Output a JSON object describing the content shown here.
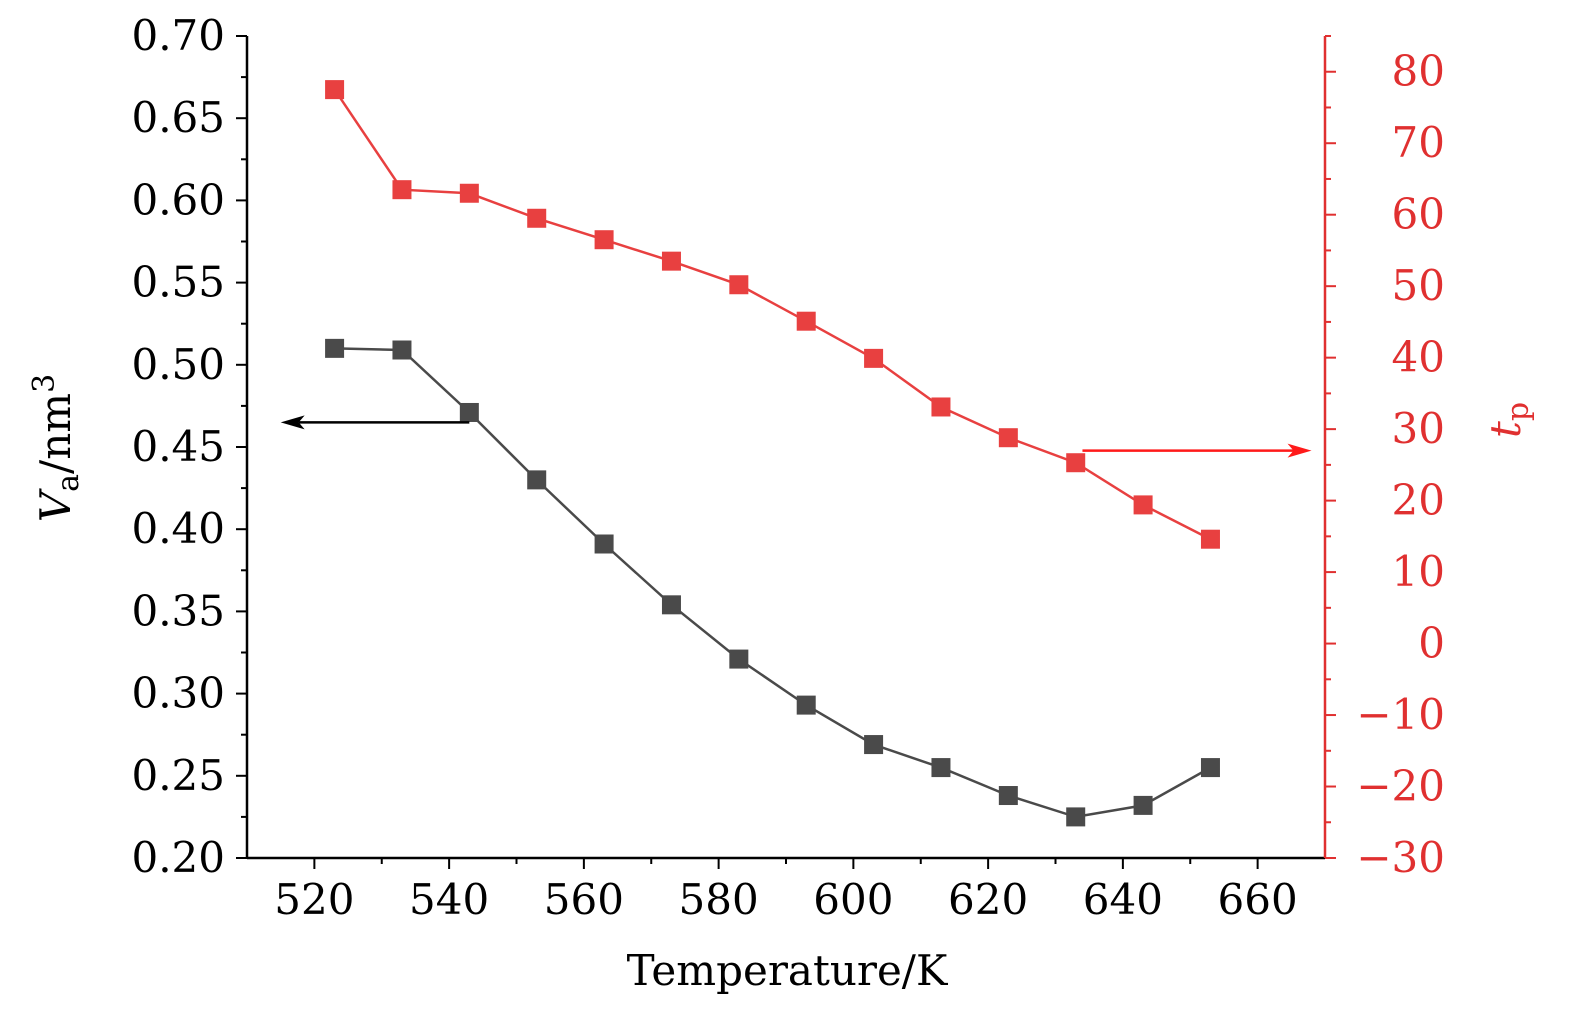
{
  "chart_data": {
    "type": "line",
    "x": [
      523,
      533,
      543,
      553,
      563,
      573,
      583,
      593,
      603,
      613,
      623,
      633,
      643,
      653
    ],
    "xlabel": "Temperature/K",
    "xlim": [
      510,
      670
    ],
    "xticks": [
      "520",
      "540",
      "560",
      "580",
      "600",
      "620",
      "640",
      "660"
    ],
    "ylim_left": [
      0.2,
      0.7
    ],
    "ylim_right": [
      -30,
      85
    ],
    "yticks_left": [
      "0.20",
      "0.25",
      "0.30",
      "0.35",
      "0.40",
      "0.45",
      "0.50",
      "0.55",
      "0.60",
      "0.65",
      "0.70"
    ],
    "yticks_right": [
      "−30",
      "−20",
      "−10",
      "0",
      "10",
      "20",
      "30",
      "40",
      "50",
      "60",
      "70",
      "80"
    ],
    "ylabel_left": {
      "main": "V",
      "sub": "a",
      "unit": "/nm",
      "sup": "3"
    },
    "ylabel_right": {
      "main": "t",
      "sub": "p"
    },
    "grid": false,
    "series": [
      {
        "name": "Va",
        "axis": "left",
        "color": "#4a4a4a",
        "marker": "square",
        "values": [
          0.51,
          0.509,
          0.471,
          0.43,
          0.391,
          0.354,
          0.321,
          0.293,
          0.269,
          0.255,
          0.238,
          0.225,
          0.232,
          0.255
        ]
      },
      {
        "name": "tp",
        "axis": "right",
        "color": "#e84040",
        "marker": "square",
        "values": [
          77.5,
          63.5,
          63.0,
          59.5,
          56.5,
          53.5,
          50.2,
          45.1,
          39.9,
          33.1,
          28.8,
          25.3,
          19.4,
          14.6
        ]
      }
    ],
    "annotations": [
      {
        "type": "arrow",
        "color": "#000000",
        "from": {
          "x": 543,
          "y": 0.465
        },
        "to": {
          "x": 515,
          "y": 0.465
        },
        "axis": "left",
        "meaning": "points to left axis"
      },
      {
        "type": "arrow",
        "color": "#ff1a1a",
        "from": {
          "x": 634,
          "y": 27.0
        },
        "to": {
          "x": 668,
          "y": 27.0
        },
        "axis": "right",
        "meaning": "points to right axis"
      }
    ],
    "colors": {
      "left_axis": "#000000",
      "right_axis": "#e03030"
    }
  }
}
